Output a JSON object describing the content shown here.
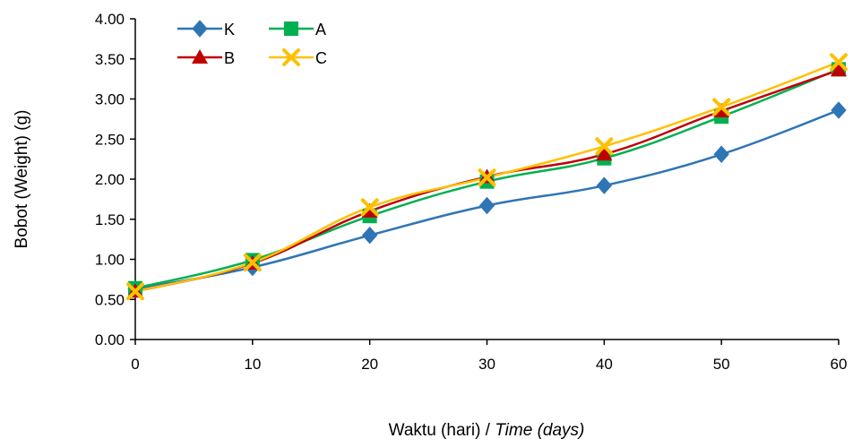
{
  "chart_data": {
    "type": "line",
    "title": "",
    "xlabel_main": "Waktu (hari) / ",
    "xlabel_italic": "Time (days)",
    "ylabel": "Bobot (Weight) (g)",
    "x": [
      0,
      10,
      20,
      30,
      40,
      50,
      60
    ],
    "xlim": [
      0,
      60
    ],
    "ylim": [
      0,
      4
    ],
    "x_ticks": [
      "0",
      "10",
      "20",
      "30",
      "40",
      "50",
      "60"
    ],
    "y_ticks": [
      "0.00",
      "0.50",
      "1.00",
      "1.50",
      "2.00",
      "2.50",
      "3.00",
      "3.50",
      "4.00"
    ],
    "y_tick_values": [
      0,
      0.5,
      1,
      1.5,
      2,
      2.5,
      3,
      3.5,
      4
    ],
    "grid": false,
    "legend_position": "top-left",
    "series": [
      {
        "name": "K",
        "color": "#2E75B6",
        "marker": "diamond",
        "values": [
          0.63,
          0.9,
          1.3,
          1.67,
          1.92,
          2.31,
          2.86
        ]
      },
      {
        "name": "A",
        "color": "#00B050",
        "marker": "square",
        "values": [
          0.64,
          0.99,
          1.54,
          1.97,
          2.26,
          2.78,
          3.37
        ]
      },
      {
        "name": "B",
        "color": "#C00000",
        "marker": "triangle",
        "values": [
          0.6,
          0.95,
          1.6,
          2.03,
          2.31,
          2.85,
          3.36
        ]
      },
      {
        "name": "C",
        "color": "#FFC000",
        "marker": "x",
        "values": [
          0.6,
          0.96,
          1.65,
          2.02,
          2.41,
          2.9,
          3.46
        ]
      }
    ]
  }
}
